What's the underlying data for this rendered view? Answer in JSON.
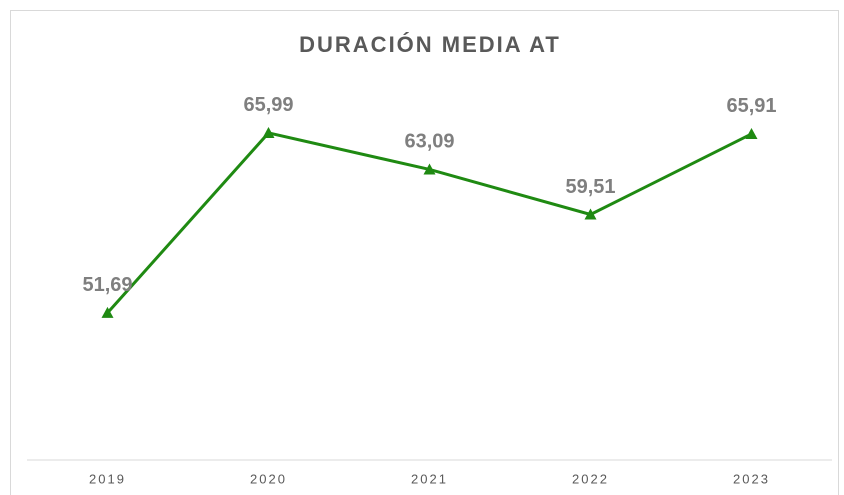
{
  "chart_data": {
    "type": "line",
    "title": "DURACIÓN MEDIA AT",
    "categories": [
      "2019",
      "2020",
      "2021",
      "2022",
      "2023"
    ],
    "values": [
      51.69,
      65.99,
      63.09,
      59.51,
      65.91
    ],
    "value_labels": [
      "51,69",
      "65,99",
      "63,09",
      "59,51",
      "65,91"
    ],
    "color": "#1f8a12",
    "ylim": [
      40,
      70
    ],
    "marker": "triangle"
  }
}
